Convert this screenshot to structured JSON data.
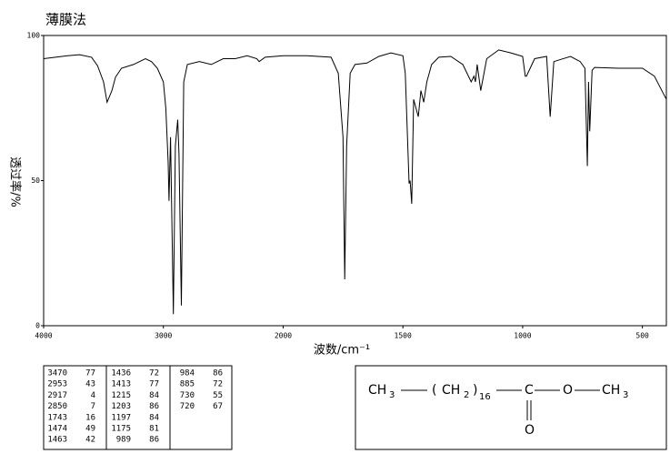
{
  "chart_data": {
    "type": "line",
    "title": "薄膜法",
    "xlabel": "波数/cm⁻¹",
    "ylabel": "透过率/%",
    "xlim": [
      4000,
      400
    ],
    "xbreak": 2000,
    "xbreak_factor": 2,
    "ylim": [
      0,
      100
    ],
    "xticks": [
      4000,
      3000,
      2000,
      1500,
      1000,
      500
    ],
    "yticks": [
      0,
      50,
      100
    ],
    "series": [
      {
        "color": "#000000",
        "x": [
          4000,
          3800,
          3700,
          3600,
          3550,
          3500,
          3470,
          3430,
          3400,
          3350,
          3250,
          3150,
          3100,
          3050,
          3000,
          2980,
          2960,
          2953,
          2940,
          2917,
          2900,
          2880,
          2870,
          2850,
          2830,
          2800,
          2700,
          2600,
          2500,
          2400,
          2300,
          2220,
          2200,
          2150,
          2000,
          1900,
          1800,
          1770,
          1750,
          1743,
          1735,
          1720,
          1700,
          1650,
          1600,
          1550,
          1500,
          1490,
          1474,
          1470,
          1463,
          1455,
          1436,
          1425,
          1413,
          1400,
          1380,
          1350,
          1300,
          1250,
          1215,
          1203,
          1197,
          1190,
          1175,
          1150,
          1100,
          1050,
          1000,
          989,
          984,
          950,
          900,
          885,
          870,
          800,
          760,
          740,
          730,
          725,
          720,
          710,
          700,
          600,
          500,
          450,
          400
        ],
        "values": [
          92,
          93,
          93.4,
          92.5,
          89.6,
          84,
          77,
          81,
          85.6,
          88.7,
          90,
          92,
          91,
          88.7,
          84,
          75,
          56,
          43,
          65,
          4,
          62,
          71,
          59,
          7,
          84,
          90,
          91,
          90,
          92,
          92,
          93,
          92,
          91,
          92.5,
          93,
          93,
          92.5,
          87,
          65,
          16,
          62,
          87,
          90,
          90.5,
          92.8,
          94,
          93,
          87,
          49,
          50,
          42,
          78,
          72,
          81,
          77,
          84,
          90,
          92.5,
          92.8,
          90,
          84,
          86,
          84,
          90,
          81,
          92,
          95,
          94,
          92.8,
          86,
          86,
          92,
          92.8,
          72,
          91,
          92.8,
          91,
          88.7,
          55,
          84,
          67,
          88,
          89,
          88.7,
          88.7,
          86,
          78
        ]
      }
    ]
  },
  "peak_table": {
    "columns": [
      [
        [
          3470,
          77
        ],
        [
          2953,
          43
        ],
        [
          2917,
          4
        ],
        [
          2850,
          7
        ],
        [
          1743,
          16
        ],
        [
          1474,
          49
        ],
        [
          1463,
          42
        ]
      ],
      [
        [
          1436,
          72
        ],
        [
          1413,
          77
        ],
        [
          1215,
          84
        ],
        [
          1203,
          86
        ],
        [
          1197,
          84
        ],
        [
          1175,
          81
        ],
        [
          989,
          86
        ]
      ],
      [
        [
          984,
          86
        ],
        [
          885,
          72
        ],
        [
          730,
          55
        ],
        [
          720,
          67
        ]
      ]
    ]
  },
  "formula": {
    "parts": [
      "CH",
      "3",
      "(",
      "CH",
      "2",
      ")",
      "16",
      "C",
      "O",
      "CH",
      "3",
      "O"
    ]
  }
}
